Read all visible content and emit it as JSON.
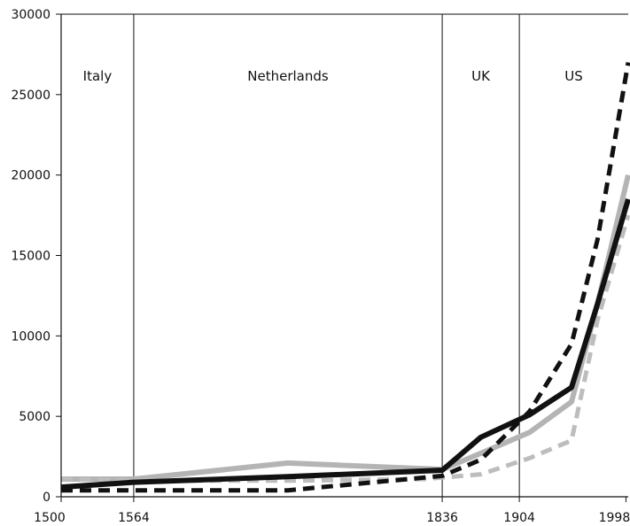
{
  "chart_data": {
    "type": "line",
    "title": "",
    "xlabel": "",
    "ylabel": "",
    "xlim": [
      1500,
      2000
    ],
    "ylim": [
      0,
      30000
    ],
    "y_ticks": [
      0,
      5000,
      10000,
      15000,
      20000,
      25000,
      30000
    ],
    "x_ticks": [
      {
        "value": 1500,
        "label": "1500"
      },
      {
        "value": 1564,
        "label": "1564"
      },
      {
        "value": 1836,
        "label": "1836"
      },
      {
        "value": 1904,
        "label": "1904"
      },
      {
        "value": 1998,
        "label": "1998"
      }
    ],
    "eras": [
      {
        "label": "Italy",
        "start": 1500,
        "end": 1564
      },
      {
        "label": "Netherlands",
        "start": 1564,
        "end": 1836
      },
      {
        "label": "UK",
        "start": 1836,
        "end": 1904
      },
      {
        "label": "US",
        "start": 1904,
        "end": 2000
      }
    ],
    "era_boundaries": [
      1564,
      1836,
      1904
    ],
    "legend": "none",
    "grid": false,
    "series": [
      {
        "color": "#b4b4b4",
        "style": "solid",
        "points": [
          [
            1500,
            1100
          ],
          [
            1564,
            1100
          ],
          [
            1700,
            2100
          ],
          [
            1836,
            1700
          ],
          [
            1870,
            2700
          ],
          [
            1913,
            4000
          ],
          [
            1950,
            5900
          ],
          [
            1973,
            12000
          ],
          [
            2000,
            20000
          ]
        ]
      },
      {
        "color": "#bdbdbd",
        "style": "dashed",
        "points": [
          [
            1500,
            1100
          ],
          [
            1564,
            1000
          ],
          [
            1700,
            1000
          ],
          [
            1820,
            1100
          ],
          [
            1870,
            1400
          ],
          [
            1913,
            2400
          ],
          [
            1950,
            3500
          ],
          [
            1973,
            11000
          ],
          [
            2000,
            17500
          ]
        ]
      },
      {
        "color": "#111111",
        "style": "dashed",
        "points": [
          [
            1500,
            400
          ],
          [
            1564,
            400
          ],
          [
            1700,
            400
          ],
          [
            1836,
            1300
          ],
          [
            1870,
            2300
          ],
          [
            1913,
            5300
          ],
          [
            1950,
            9500
          ],
          [
            1973,
            16000
          ],
          [
            2000,
            27000
          ]
        ]
      },
      {
        "color": "#111111",
        "style": "solid",
        "points": [
          [
            1500,
            600
          ],
          [
            1564,
            900
          ],
          [
            1700,
            1250
          ],
          [
            1836,
            1650
          ],
          [
            1870,
            3700
          ],
          [
            1913,
            5100
          ],
          [
            1950,
            6800
          ],
          [
            1973,
            12000
          ],
          [
            2000,
            18500
          ]
        ]
      }
    ]
  }
}
